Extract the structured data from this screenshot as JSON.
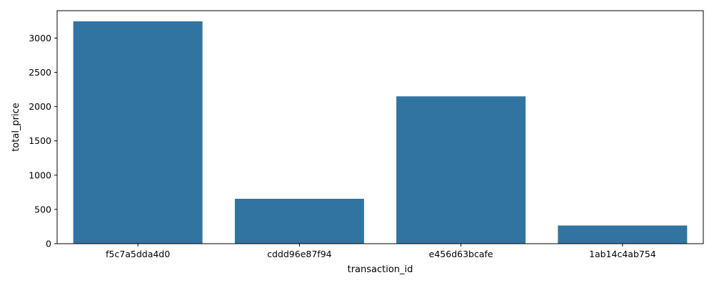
{
  "chart_data": {
    "type": "bar",
    "categories": [
      "f5c7a5dda4d0",
      "cddd96e87f94",
      "e456d63bcafe",
      "1ab14c4ab754"
    ],
    "values": [
      3245,
      655,
      2150,
      265
    ],
    "title": "",
    "xlabel": "transaction_id",
    "ylabel": "total_price",
    "ylim": [
      0,
      3400
    ],
    "yticks": [
      0,
      500,
      1000,
      1500,
      2000,
      2500,
      3000
    ],
    "bar_color": "#3274a1",
    "grid": false,
    "legend": "none"
  }
}
